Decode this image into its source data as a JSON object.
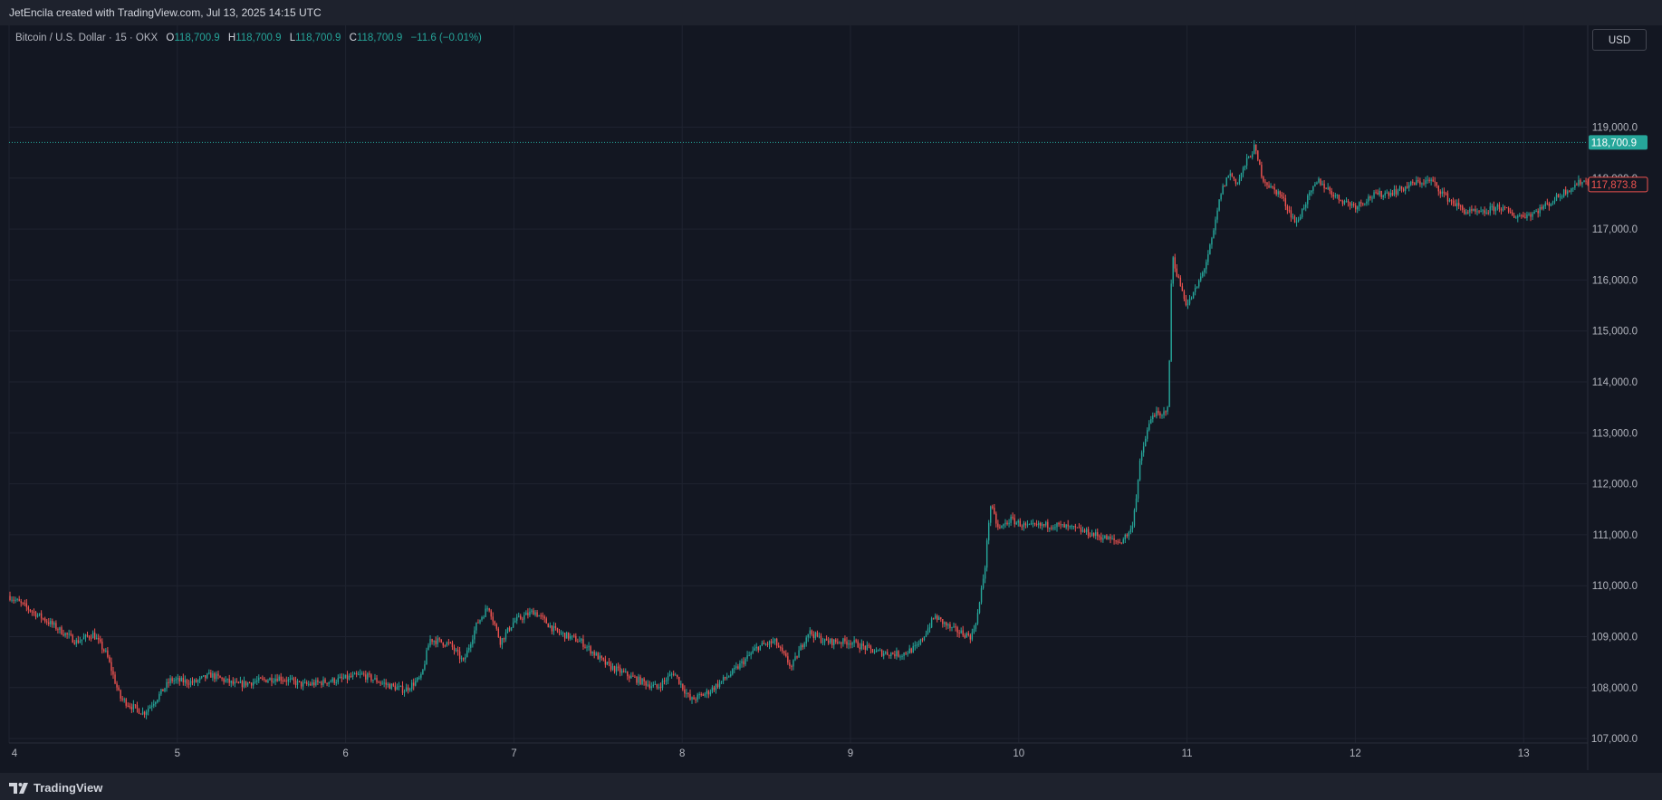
{
  "header": {
    "attribution": "JetEncila created with TradingView.com, Jul 13, 2025 14:15 UTC"
  },
  "legend": {
    "symbol": "Bitcoin / U.S. Dollar · 15 · OKX",
    "open_label": "O",
    "open_value": "118,700.9",
    "high_label": "H",
    "high_value": "118,700.9",
    "low_label": "L",
    "low_value": "118,700.9",
    "close_label": "C",
    "close_value": "118,700.9",
    "change": "−11.6 (−0.01%)"
  },
  "currency_button": "USD",
  "footer": {
    "brand": "TradingView"
  },
  "colors": {
    "background": "#131722",
    "up": "#26a69a",
    "down": "#ef5350",
    "grid": "#1f2330",
    "text": "#b2b5be"
  },
  "chart_data": {
    "type": "candlestick",
    "timeframe": "15",
    "y_ticks": [
      107000,
      108000,
      109000,
      110000,
      111000,
      112000,
      113000,
      114000,
      115000,
      116000,
      117000,
      118000,
      119000
    ],
    "y_tick_labels": [
      "107,000.0",
      "108,000.0",
      "109,000.0",
      "110,000.0",
      "111,000.0",
      "112,000.0",
      "113,000.0",
      "114,000.0",
      "115,000.0",
      "116,000.0",
      "117,000.0",
      "118,000.0",
      "119,000.0"
    ],
    "ylim": [
      106200,
      119900
    ],
    "xlim": [
      4,
      13.42
    ],
    "x_ticks": [
      4,
      5,
      6,
      7,
      8,
      9,
      10,
      11,
      12,
      13
    ],
    "x_tick_labels": [
      "4",
      "5",
      "6",
      "7",
      "8",
      "9",
      "10",
      "11",
      "12",
      "13"
    ],
    "last_price": 118700.9,
    "last_price_label": "118,700.9",
    "secondary_price": 117873.8,
    "secondary_price_label": "117,873.8",
    "price_path": [
      [
        4.0,
        109800
      ],
      [
        4.25,
        109250
      ],
      [
        4.4,
        108900
      ],
      [
        4.5,
        109050
      ],
      [
        4.58,
        108650
      ],
      [
        4.66,
        107800
      ],
      [
        4.72,
        107650
      ],
      [
        4.8,
        107500
      ],
      [
        4.88,
        107800
      ],
      [
        4.96,
        108150
      ],
      [
        5.1,
        108100
      ],
      [
        5.2,
        108250
      ],
      [
        5.35,
        108050
      ],
      [
        5.6,
        108200
      ],
      [
        5.75,
        108050
      ],
      [
        5.95,
        108150
      ],
      [
        6.1,
        108250
      ],
      [
        6.25,
        108050
      ],
      [
        6.35,
        107950
      ],
      [
        6.45,
        108200
      ],
      [
        6.5,
        108950
      ],
      [
        6.62,
        108850
      ],
      [
        6.7,
        108500
      ],
      [
        6.78,
        109250
      ],
      [
        6.85,
        109600
      ],
      [
        6.92,
        108900
      ],
      [
        7.0,
        109300
      ],
      [
        7.12,
        109500
      ],
      [
        7.25,
        109100
      ],
      [
        7.4,
        108900
      ],
      [
        7.55,
        108450
      ],
      [
        7.7,
        108200
      ],
      [
        7.85,
        108000
      ],
      [
        7.95,
        108300
      ],
      [
        8.05,
        107750
      ],
      [
        8.15,
        107900
      ],
      [
        8.3,
        108300
      ],
      [
        8.45,
        108800
      ],
      [
        8.55,
        108900
      ],
      [
        8.65,
        108400
      ],
      [
        8.75,
        109100
      ],
      [
        8.85,
        108900
      ],
      [
        9.0,
        108900
      ],
      [
        9.15,
        108700
      ],
      [
        9.3,
        108650
      ],
      [
        9.4,
        108800
      ],
      [
        9.5,
        109400
      ],
      [
        9.6,
        109150
      ],
      [
        9.72,
        109000
      ],
      [
        9.76,
        109500
      ],
      [
        9.8,
        110400
      ],
      [
        9.83,
        111600
      ],
      [
        9.88,
        111100
      ],
      [
        9.95,
        111300
      ],
      [
        10.05,
        111150
      ],
      [
        10.2,
        111200
      ],
      [
        10.35,
        111100
      ],
      [
        10.5,
        110950
      ],
      [
        10.6,
        110850
      ],
      [
        10.67,
        111100
      ],
      [
        10.7,
        111800
      ],
      [
        10.72,
        112400
      ],
      [
        10.76,
        113000
      ],
      [
        10.8,
        113400
      ],
      [
        10.85,
        113300
      ],
      [
        10.89,
        113600
      ],
      [
        10.91,
        116500
      ],
      [
        10.95,
        116000
      ],
      [
        11.0,
        115500
      ],
      [
        11.05,
        115800
      ],
      [
        11.1,
        116200
      ],
      [
        11.15,
        116800
      ],
      [
        11.2,
        117700
      ],
      [
        11.25,
        118100
      ],
      [
        11.3,
        117900
      ],
      [
        11.35,
        118300
      ],
      [
        11.4,
        118600
      ],
      [
        11.45,
        118000
      ],
      [
        11.5,
        117800
      ],
      [
        11.55,
        117700
      ],
      [
        11.6,
        117400
      ],
      [
        11.65,
        117100
      ],
      [
        11.7,
        117500
      ],
      [
        11.78,
        117950
      ],
      [
        11.9,
        117600
      ],
      [
        12.0,
        117450
      ],
      [
        12.1,
        117650
      ],
      [
        12.25,
        117750
      ],
      [
        12.35,
        117900
      ],
      [
        12.45,
        117950
      ],
      [
        12.55,
        117600
      ],
      [
        12.65,
        117350
      ],
      [
        12.75,
        117300
      ],
      [
        12.85,
        117450
      ],
      [
        12.95,
        117250
      ],
      [
        13.05,
        117300
      ],
      [
        13.15,
        117500
      ],
      [
        13.25,
        117750
      ],
      [
        13.35,
        117950
      ],
      [
        13.42,
        117870
      ]
    ]
  }
}
